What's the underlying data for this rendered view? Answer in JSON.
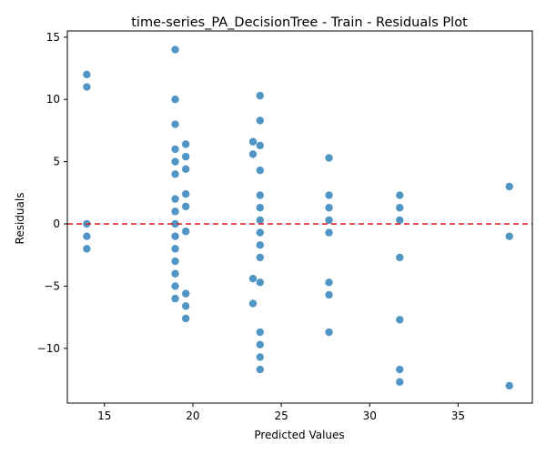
{
  "chart_data": {
    "type": "scatter",
    "title": "time-series_PA_DecisionTree - Train - Residuals Plot",
    "xlabel": "Predicted Values",
    "ylabel": "Residuals",
    "xlim": [
      12.9,
      39.2
    ],
    "ylim": [
      -14.4,
      15.5
    ],
    "xticks": [
      15,
      20,
      25,
      30,
      35
    ],
    "yticks": [
      -10,
      -5,
      0,
      5,
      10,
      15
    ],
    "grid": false,
    "reference_line": {
      "y": 0,
      "style": "dashed",
      "color": "#d62728"
    },
    "point_color": "#1f77b4",
    "points": [
      {
        "x": 14.0,
        "y": 12.0
      },
      {
        "x": 14.0,
        "y": 11.0
      },
      {
        "x": 14.0,
        "y": 0.0
      },
      {
        "x": 14.0,
        "y": -1.0
      },
      {
        "x": 14.0,
        "y": -2.0
      },
      {
        "x": 19.0,
        "y": 14.0
      },
      {
        "x": 19.0,
        "y": 10.0
      },
      {
        "x": 19.0,
        "y": 8.0
      },
      {
        "x": 19.0,
        "y": 6.0
      },
      {
        "x": 19.0,
        "y": 5.0
      },
      {
        "x": 19.0,
        "y": 4.0
      },
      {
        "x": 19.0,
        "y": 2.0
      },
      {
        "x": 19.0,
        "y": 1.0
      },
      {
        "x": 19.0,
        "y": 0.0
      },
      {
        "x": 19.0,
        "y": -1.0
      },
      {
        "x": 19.0,
        "y": -2.0
      },
      {
        "x": 19.0,
        "y": -3.0
      },
      {
        "x": 19.0,
        "y": -4.0
      },
      {
        "x": 19.0,
        "y": -5.0
      },
      {
        "x": 19.0,
        "y": -6.0
      },
      {
        "x": 19.6,
        "y": 6.4
      },
      {
        "x": 19.6,
        "y": 5.4
      },
      {
        "x": 19.6,
        "y": 4.4
      },
      {
        "x": 19.6,
        "y": 2.4
      },
      {
        "x": 19.6,
        "y": 1.4
      },
      {
        "x": 19.6,
        "y": -0.6
      },
      {
        "x": 19.6,
        "y": -5.6
      },
      {
        "x": 19.6,
        "y": -6.6
      },
      {
        "x": 19.6,
        "y": -7.6
      },
      {
        "x": 23.4,
        "y": 6.6
      },
      {
        "x": 23.4,
        "y": 5.6
      },
      {
        "x": 23.4,
        "y": -4.4
      },
      {
        "x": 23.4,
        "y": -6.4
      },
      {
        "x": 23.8,
        "y": 10.3
      },
      {
        "x": 23.8,
        "y": 8.3
      },
      {
        "x": 23.8,
        "y": 6.3
      },
      {
        "x": 23.8,
        "y": 4.3
      },
      {
        "x": 23.8,
        "y": 2.3
      },
      {
        "x": 23.8,
        "y": 1.3
      },
      {
        "x": 23.8,
        "y": 0.3
      },
      {
        "x": 23.8,
        "y": -0.7
      },
      {
        "x": 23.8,
        "y": -1.7
      },
      {
        "x": 23.8,
        "y": -2.7
      },
      {
        "x": 23.8,
        "y": -4.7
      },
      {
        "x": 23.8,
        "y": -8.7
      },
      {
        "x": 23.8,
        "y": -9.7
      },
      {
        "x": 23.8,
        "y": -10.7
      },
      {
        "x": 23.8,
        "y": -11.7
      },
      {
        "x": 27.7,
        "y": 5.3
      },
      {
        "x": 27.7,
        "y": 2.3
      },
      {
        "x": 27.7,
        "y": 1.3
      },
      {
        "x": 27.7,
        "y": 0.3
      },
      {
        "x": 27.7,
        "y": -0.7
      },
      {
        "x": 27.7,
        "y": -4.7
      },
      {
        "x": 27.7,
        "y": -5.7
      },
      {
        "x": 27.7,
        "y": -8.7
      },
      {
        "x": 31.7,
        "y": 2.3
      },
      {
        "x": 31.7,
        "y": 1.3
      },
      {
        "x": 31.7,
        "y": 0.3
      },
      {
        "x": 31.7,
        "y": -2.7
      },
      {
        "x": 31.7,
        "y": -7.7
      },
      {
        "x": 31.7,
        "y": -11.7
      },
      {
        "x": 31.7,
        "y": -12.7
      },
      {
        "x": 37.9,
        "y": 3.0
      },
      {
        "x": 37.9,
        "y": -1.0
      },
      {
        "x": 37.9,
        "y": -13.0
      }
    ]
  }
}
